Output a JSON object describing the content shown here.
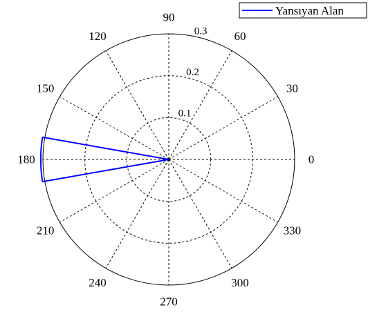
{
  "chart_data": {
    "type": "polar-line",
    "title": "",
    "angle_unit": "degrees",
    "angle_ticks": [
      0,
      30,
      60,
      90,
      120,
      150,
      180,
      210,
      240,
      270,
      300,
      330
    ],
    "angle_tick_labels": [
      "0",
      "30",
      "60",
      "90",
      "120",
      "150",
      "180",
      "210",
      "240",
      "270",
      "300",
      "330"
    ],
    "radius_ticks": [
      0.1,
      0.2,
      0.3
    ],
    "radius_tick_labels": [
      "0.1",
      "0.2",
      "0.3"
    ],
    "rlim": [
      0,
      0.3
    ],
    "grid": true,
    "legend": {
      "position": "top-right",
      "entries": [
        "Yansıyan Alan"
      ]
    },
    "series": [
      {
        "name": "Yansıyan Alan",
        "color": "#0000ff",
        "theta": [
          0,
          170,
          170,
          172,
          174,
          176,
          178,
          180,
          182,
          184,
          186,
          188,
          190,
          190,
          0
        ],
        "r": [
          0,
          0.306,
          0.3055,
          0.3054,
          0.3053,
          0.3052,
          0.3051,
          0.305,
          0.3051,
          0.3052,
          0.3053,
          0.3054,
          0.3055,
          0.306,
          0
        ]
      }
    ]
  }
}
